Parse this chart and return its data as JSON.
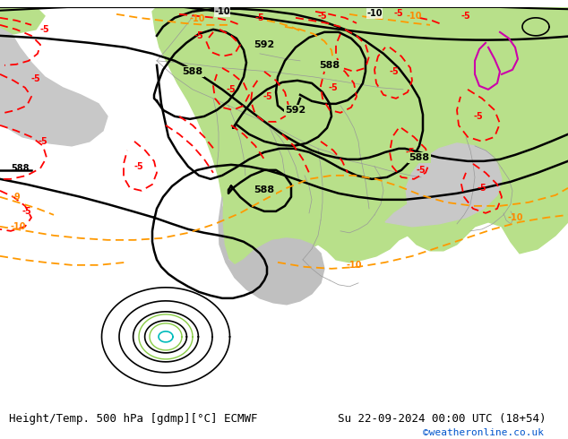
{
  "title_left": "Height/Temp. 500 hPa [gdmp][°C] ECMWF",
  "title_right": "Su 22-09-2024 00:00 UTC (18+54)",
  "watermark": "©weatheronline.co.uk",
  "bg_ocean": "#d0d0d0",
  "bg_land_warm": "#b8e08a",
  "bg_land_cool": "#c8c8c8",
  "title_fontsize": 9,
  "watermark_color": "#0055cc"
}
